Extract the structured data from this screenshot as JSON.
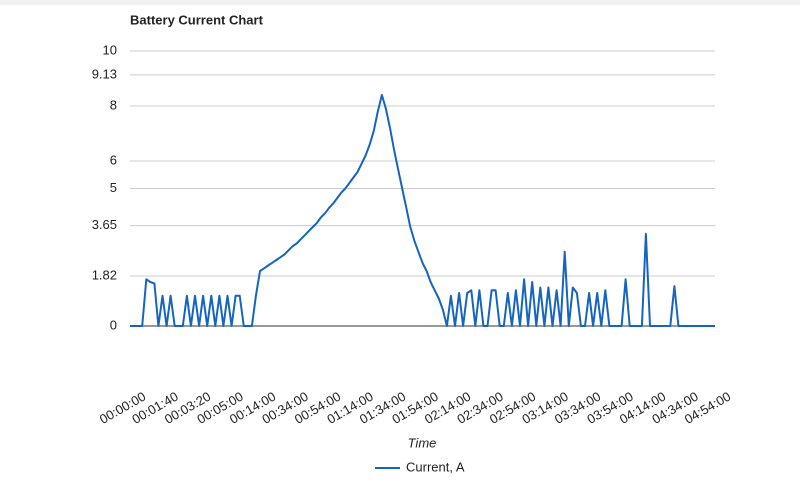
{
  "chart_data": {
    "type": "line",
    "title": "Battery Current Chart",
    "x_label": "Time",
    "categories": [
      "00:00:00",
      null,
      null,
      null,
      null,
      null,
      null,
      null,
      "00:01:40",
      null,
      null,
      null,
      null,
      null,
      null,
      null,
      "00:03:20",
      null,
      null,
      null,
      null,
      null,
      null,
      null,
      "00:05:00",
      null,
      null,
      null,
      null,
      null,
      null,
      null,
      "00:14:00",
      null,
      null,
      null,
      null,
      null,
      null,
      null,
      "00:34:00",
      null,
      null,
      null,
      null,
      null,
      null,
      null,
      "00:54:00",
      null,
      null,
      null,
      null,
      null,
      null,
      null,
      "01:14:00",
      null,
      null,
      null,
      null,
      null,
      null,
      null,
      "01:34:00",
      null,
      null,
      null,
      null,
      null,
      null,
      null,
      "01:54:00",
      null,
      null,
      null,
      null,
      null,
      null,
      null,
      "02:14:00",
      null,
      null,
      null,
      null,
      null,
      null,
      null,
      "02:34:00",
      null,
      null,
      null,
      null,
      null,
      null,
      null,
      "02:54:00",
      null,
      null,
      null,
      null,
      null,
      null,
      null,
      "03:14:00",
      null,
      null,
      null,
      null,
      null,
      null,
      null,
      "03:34:00",
      null,
      null,
      null,
      null,
      null,
      null,
      null,
      "03:54:00",
      null,
      null,
      null,
      null,
      null,
      null,
      null,
      "04:14:00",
      null,
      null,
      null,
      null,
      null,
      null,
      null,
      "04:34:00",
      null,
      null,
      null,
      null,
      null,
      null,
      null,
      "04:54:00"
    ],
    "series": [
      {
        "name": "Current, A",
        "color": "#1565c0",
        "values": [
          0,
          0,
          0,
          0,
          1.7,
          1.6,
          1.55,
          0,
          1.1,
          0,
          1.1,
          0,
          0,
          0,
          1.1,
          0,
          1.1,
          0,
          1.1,
          0,
          1.1,
          0,
          1.1,
          0,
          1.1,
          0,
          1.1,
          1.1,
          0,
          0,
          0,
          1.1,
          2.0,
          2.1,
          2.2,
          2.3,
          2.4,
          2.5,
          2.6,
          2.75,
          2.9,
          3.0,
          3.15,
          3.3,
          3.45,
          3.6,
          3.75,
          3.95,
          4.1,
          4.3,
          4.45,
          4.65,
          4.85,
          5.0,
          5.2,
          5.4,
          5.6,
          5.9,
          6.2,
          6.6,
          7.1,
          7.8,
          8.4,
          7.9,
          7.2,
          6.4,
          5.7,
          5.0,
          4.3,
          3.6,
          3.1,
          2.7,
          2.3,
          2.0,
          1.6,
          1.3,
          1.0,
          0.6,
          0,
          1.1,
          0,
          1.2,
          0,
          1.2,
          1.3,
          0,
          1.3,
          0,
          0,
          1.3,
          1.3,
          0,
          0,
          1.2,
          0,
          1.3,
          0,
          1.7,
          0,
          1.6,
          0,
          1.4,
          0,
          1.4,
          0,
          1.3,
          0,
          2.7,
          0,
          1.4,
          1.2,
          0,
          0,
          1.2,
          0,
          1.2,
          0,
          1.3,
          0,
          0,
          0,
          0,
          1.7,
          0,
          0,
          0,
          0,
          3.35,
          0,
          0,
          0,
          0,
          0,
          0,
          1.45,
          0,
          0,
          0,
          0,
          0,
          0,
          0,
          0,
          0,
          0
        ]
      }
    ],
    "ylim": [
      0,
      10
    ],
    "yticks": [
      0,
      1.82,
      3.65,
      5,
      6,
      8,
      9.13,
      10
    ],
    "grid": true,
    "legend": "bottom"
  }
}
